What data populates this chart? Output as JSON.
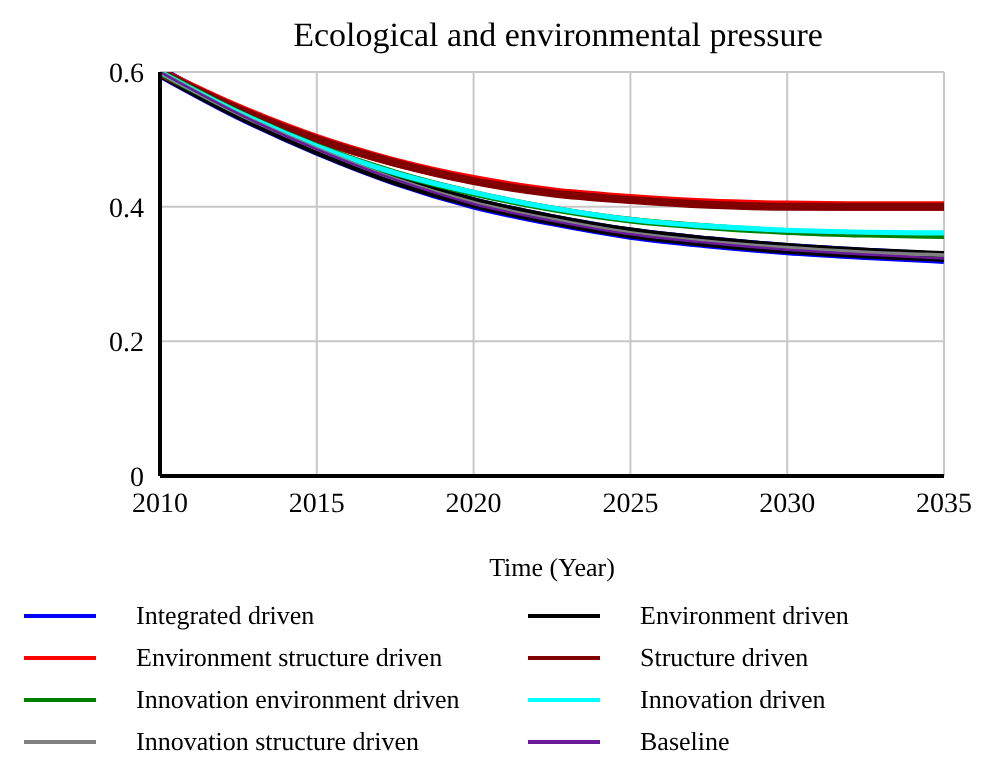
{
  "chart_data": {
    "type": "line",
    "title": "Ecological and environmental pressure",
    "xlabel": "Time (Year)",
    "x": [
      2010,
      2012.5,
      2015,
      2017.5,
      2020,
      2022.5,
      2025,
      2027.5,
      2030,
      2032.5,
      2035
    ],
    "xlim": [
      2010,
      2035
    ],
    "xticks": [
      2010,
      2015,
      2020,
      2025,
      2030,
      2035
    ],
    "ylim": [
      0,
      0.6
    ],
    "yticks": [
      0,
      0.2,
      0.4,
      0.6
    ],
    "grid": true,
    "legend": "bottom",
    "marker": "none",
    "line_style": "solid",
    "series": [
      {
        "name": "Integrated driven",
        "color": "#0000ff",
        "values": [
          0.6,
          0.538,
          0.485,
          0.44,
          0.405,
          0.38,
          0.36,
          0.347,
          0.337,
          0.33,
          0.324
        ]
      },
      {
        "name": "Environment driven",
        "color": "#000000",
        "values": [
          0.6,
          0.538,
          0.485,
          0.44,
          0.406,
          0.381,
          0.361,
          0.348,
          0.338,
          0.331,
          0.326
        ]
      },
      {
        "name": "Environment structure driven",
        "color": "#ff0000",
        "values": [
          0.6,
          0.546,
          0.501,
          0.466,
          0.44,
          0.422,
          0.412,
          0.405,
          0.402,
          0.401,
          0.401
        ]
      },
      {
        "name": "Structure driven",
        "color": "#800000",
        "values": [
          0.6,
          0.545,
          0.5,
          0.465,
          0.438,
          0.42,
          0.41,
          0.403,
          0.4,
          0.4,
          0.4
        ]
      },
      {
        "name": "Innovation environment driven",
        "color": "#008000",
        "values": [
          0.6,
          0.54,
          0.49,
          0.45,
          0.42,
          0.397,
          0.38,
          0.37,
          0.363,
          0.359,
          0.357
        ]
      },
      {
        "name": "Innovation driven",
        "color": "#00ffff",
        "values": [
          0.6,
          0.54,
          0.49,
          0.45,
          0.421,
          0.398,
          0.381,
          0.371,
          0.365,
          0.362,
          0.361
        ]
      },
      {
        "name": "Innovation structure driven",
        "color": "#808080",
        "values": [
          0.6,
          0.538,
          0.486,
          0.441,
          0.406,
          0.381,
          0.361,
          0.348,
          0.339,
          0.332,
          0.328
        ]
      },
      {
        "name": "Baseline",
        "color": "#6a1b9a",
        "values": [
          0.6,
          0.538,
          0.485,
          0.44,
          0.404,
          0.379,
          0.359,
          0.346,
          0.336,
          0.329,
          0.323
        ]
      }
    ]
  }
}
